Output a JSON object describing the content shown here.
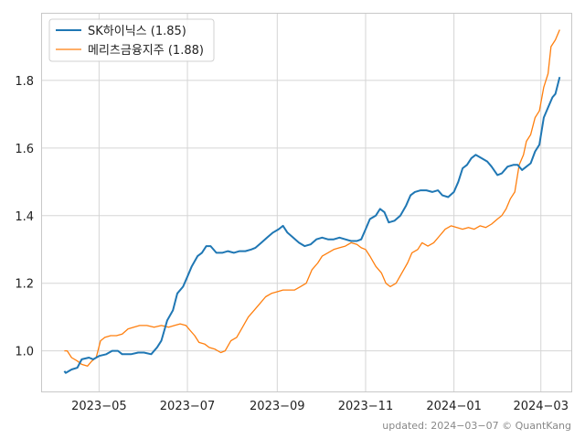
{
  "chart_data": {
    "type": "line",
    "ylim": [
      0.88,
      2.0
    ],
    "xlim": [
      "2023-03-22",
      "2024-03-22"
    ],
    "yticks": [
      1.0,
      1.2,
      1.4,
      1.6,
      1.8
    ],
    "xticks": [
      {
        "date": "2023-05-01",
        "label": "2023−05"
      },
      {
        "date": "2023-07-01",
        "label": "2023−07"
      },
      {
        "date": "2023-09-01",
        "label": "2023−09"
      },
      {
        "date": "2023-11-01",
        "label": "2023−11"
      },
      {
        "date": "2024-01-01",
        "label": "2024−01"
      },
      {
        "date": "2024-03-01",
        "label": "2024−03"
      }
    ],
    "grid": true,
    "legend_position": "top-left",
    "series": [
      {
        "name": "SK하이닉스",
        "legend_label": "SK하이닉스 (1.85)",
        "color": "#1f77b4",
        "points": [
          [
            "2023-04-07",
            0.94
          ],
          [
            "2023-04-08",
            0.935
          ],
          [
            "2023-04-12",
            0.945
          ],
          [
            "2023-04-16",
            0.95
          ],
          [
            "2023-04-19",
            0.975
          ],
          [
            "2023-04-24",
            0.98
          ],
          [
            "2023-04-27",
            0.975
          ],
          [
            "2023-05-01",
            0.985
          ],
          [
            "2023-05-06",
            0.99
          ],
          [
            "2023-05-10",
            1.0
          ],
          [
            "2023-05-14",
            1.0
          ],
          [
            "2023-05-17",
            0.99
          ],
          [
            "2023-05-23",
            0.99
          ],
          [
            "2023-05-28",
            0.995
          ],
          [
            "2023-06-01",
            0.995
          ],
          [
            "2023-06-06",
            0.99
          ],
          [
            "2023-06-10",
            1.01
          ],
          [
            "2023-06-13",
            1.03
          ],
          [
            "2023-06-17",
            1.09
          ],
          [
            "2023-06-21",
            1.12
          ],
          [
            "2023-06-24",
            1.17
          ],
          [
            "2023-06-28",
            1.19
          ],
          [
            "2023-07-01",
            1.22
          ],
          [
            "2023-07-04",
            1.25
          ],
          [
            "2023-07-08",
            1.28
          ],
          [
            "2023-07-11",
            1.29
          ],
          [
            "2023-07-14",
            1.31
          ],
          [
            "2023-07-17",
            1.31
          ],
          [
            "2023-07-21",
            1.29
          ],
          [
            "2023-07-25",
            1.29
          ],
          [
            "2023-07-29",
            1.295
          ],
          [
            "2023-08-02",
            1.29
          ],
          [
            "2023-08-06",
            1.295
          ],
          [
            "2023-08-10",
            1.295
          ],
          [
            "2023-08-14",
            1.3
          ],
          [
            "2023-08-17",
            1.305
          ],
          [
            "2023-08-21",
            1.32
          ],
          [
            "2023-08-25",
            1.335
          ],
          [
            "2023-08-29",
            1.35
          ],
          [
            "2023-09-02",
            1.36
          ],
          [
            "2023-09-05",
            1.37
          ],
          [
            "2023-09-08",
            1.35
          ],
          [
            "2023-09-12",
            1.335
          ],
          [
            "2023-09-16",
            1.32
          ],
          [
            "2023-09-20",
            1.31
          ],
          [
            "2023-09-24",
            1.315
          ],
          [
            "2023-09-28",
            1.33
          ],
          [
            "2023-10-02",
            1.335
          ],
          [
            "2023-10-06",
            1.33
          ],
          [
            "2023-10-10",
            1.33
          ],
          [
            "2023-10-14",
            1.335
          ],
          [
            "2023-10-18",
            1.33
          ],
          [
            "2023-10-22",
            1.325
          ],
          [
            "2023-10-26",
            1.325
          ],
          [
            "2023-10-29",
            1.33
          ],
          [
            "2023-11-01",
            1.36
          ],
          [
            "2023-11-04",
            1.39
          ],
          [
            "2023-11-08",
            1.4
          ],
          [
            "2023-11-11",
            1.42
          ],
          [
            "2023-11-14",
            1.41
          ],
          [
            "2023-11-17",
            1.38
          ],
          [
            "2023-11-21",
            1.385
          ],
          [
            "2023-11-25",
            1.4
          ],
          [
            "2023-11-29",
            1.43
          ],
          [
            "2023-12-02",
            1.46
          ],
          [
            "2023-12-05",
            1.47
          ],
          [
            "2023-12-09",
            1.475
          ],
          [
            "2023-12-13",
            1.475
          ],
          [
            "2023-12-17",
            1.47
          ],
          [
            "2023-12-21",
            1.475
          ],
          [
            "2023-12-24",
            1.46
          ],
          [
            "2023-12-28",
            1.455
          ],
          [
            "2024-01-01",
            1.47
          ],
          [
            "2024-01-04",
            1.5
          ],
          [
            "2024-01-07",
            1.54
          ],
          [
            "2024-01-10",
            1.55
          ],
          [
            "2024-01-13",
            1.57
          ],
          [
            "2024-01-16",
            1.58
          ],
          [
            "2024-01-20",
            1.57
          ],
          [
            "2024-01-24",
            1.56
          ],
          [
            "2024-01-27",
            1.545
          ],
          [
            "2024-01-31",
            1.52
          ],
          [
            "2024-02-03",
            1.525
          ],
          [
            "2024-02-07",
            1.545
          ],
          [
            "2024-02-11",
            1.55
          ],
          [
            "2024-02-14",
            1.55
          ],
          [
            "2024-02-17",
            1.535
          ],
          [
            "2024-02-20",
            1.545
          ],
          [
            "2024-02-23",
            1.555
          ],
          [
            "2024-02-26",
            1.59
          ],
          [
            "2024-02-29",
            1.61
          ],
          [
            "2024-03-03",
            1.69
          ],
          [
            "2024-03-06",
            1.72
          ],
          [
            "2024-03-09",
            1.75
          ],
          [
            "2024-03-11",
            1.76
          ],
          [
            "2024-03-14",
            1.81
          ]
        ]
      },
      {
        "name": "메리츠금융지주",
        "legend_label": "메리츠금융지주 (1.88)",
        "color": "#ff7f0e",
        "points": [
          [
            "2023-04-07",
            1.0
          ],
          [
            "2023-04-09",
            1.0
          ],
          [
            "2023-04-12",
            0.98
          ],
          [
            "2023-04-16",
            0.97
          ],
          [
            "2023-04-19",
            0.96
          ],
          [
            "2023-04-23",
            0.955
          ],
          [
            "2023-04-26",
            0.97
          ],
          [
            "2023-04-29",
            0.98
          ],
          [
            "2023-05-02",
            1.03
          ],
          [
            "2023-05-05",
            1.04
          ],
          [
            "2023-05-09",
            1.045
          ],
          [
            "2023-05-13",
            1.045
          ],
          [
            "2023-05-17",
            1.05
          ],
          [
            "2023-05-21",
            1.065
          ],
          [
            "2023-05-25",
            1.07
          ],
          [
            "2023-05-29",
            1.075
          ],
          [
            "2023-06-03",
            1.075
          ],
          [
            "2023-06-08",
            1.07
          ],
          [
            "2023-06-13",
            1.075
          ],
          [
            "2023-06-18",
            1.07
          ],
          [
            "2023-06-22",
            1.075
          ],
          [
            "2023-06-26",
            1.08
          ],
          [
            "2023-06-30",
            1.075
          ],
          [
            "2023-07-03",
            1.06
          ],
          [
            "2023-07-06",
            1.045
          ],
          [
            "2023-07-09",
            1.025
          ],
          [
            "2023-07-13",
            1.02
          ],
          [
            "2023-07-16",
            1.01
          ],
          [
            "2023-07-20",
            1.005
          ],
          [
            "2023-07-24",
            0.995
          ],
          [
            "2023-07-27",
            1.0
          ],
          [
            "2023-07-31",
            1.03
          ],
          [
            "2023-08-04",
            1.04
          ],
          [
            "2023-08-08",
            1.07
          ],
          [
            "2023-08-12",
            1.1
          ],
          [
            "2023-08-16",
            1.12
          ],
          [
            "2023-08-20",
            1.14
          ],
          [
            "2023-08-24",
            1.16
          ],
          [
            "2023-08-28",
            1.17
          ],
          [
            "2023-09-01",
            1.175
          ],
          [
            "2023-09-05",
            1.18
          ],
          [
            "2023-09-09",
            1.18
          ],
          [
            "2023-09-13",
            1.18
          ],
          [
            "2023-09-17",
            1.19
          ],
          [
            "2023-09-21",
            1.2
          ],
          [
            "2023-09-25",
            1.24
          ],
          [
            "2023-09-29",
            1.26
          ],
          [
            "2023-10-02",
            1.28
          ],
          [
            "2023-10-06",
            1.29
          ],
          [
            "2023-10-10",
            1.3
          ],
          [
            "2023-10-14",
            1.305
          ],
          [
            "2023-10-18",
            1.31
          ],
          [
            "2023-10-22",
            1.32
          ],
          [
            "2023-10-26",
            1.315
          ],
          [
            "2023-10-29",
            1.305
          ],
          [
            "2023-11-01",
            1.3
          ],
          [
            "2023-11-04",
            1.28
          ],
          [
            "2023-11-08",
            1.25
          ],
          [
            "2023-11-12",
            1.23
          ],
          [
            "2023-11-15",
            1.2
          ],
          [
            "2023-11-18",
            1.19
          ],
          [
            "2023-11-22",
            1.2
          ],
          [
            "2023-11-26",
            1.23
          ],
          [
            "2023-11-30",
            1.26
          ],
          [
            "2023-12-03",
            1.29
          ],
          [
            "2023-12-07",
            1.3
          ],
          [
            "2023-12-10",
            1.32
          ],
          [
            "2023-12-14",
            1.31
          ],
          [
            "2023-12-18",
            1.32
          ],
          [
            "2023-12-22",
            1.34
          ],
          [
            "2023-12-26",
            1.36
          ],
          [
            "2023-12-30",
            1.37
          ],
          [
            "2024-01-03",
            1.365
          ],
          [
            "2024-01-07",
            1.36
          ],
          [
            "2024-01-11",
            1.365
          ],
          [
            "2024-01-15",
            1.36
          ],
          [
            "2024-01-19",
            1.37
          ],
          [
            "2024-01-23",
            1.365
          ],
          [
            "2024-01-27",
            1.375
          ],
          [
            "2024-01-31",
            1.39
          ],
          [
            "2024-02-03",
            1.4
          ],
          [
            "2024-02-06",
            1.42
          ],
          [
            "2024-02-09",
            1.45
          ],
          [
            "2024-02-12",
            1.47
          ],
          [
            "2024-02-15",
            1.55
          ],
          [
            "2024-02-18",
            1.58
          ],
          [
            "2024-02-20",
            1.62
          ],
          [
            "2024-02-23",
            1.64
          ],
          [
            "2024-02-26",
            1.69
          ],
          [
            "2024-02-29",
            1.71
          ],
          [
            "2024-03-03",
            1.78
          ],
          [
            "2024-03-06",
            1.82
          ],
          [
            "2024-03-08",
            1.9
          ],
          [
            "2024-03-11",
            1.92
          ],
          [
            "2024-03-14",
            1.95
          ]
        ]
      }
    ]
  },
  "footer": "updated: 2024−03−07 © QuantKang"
}
